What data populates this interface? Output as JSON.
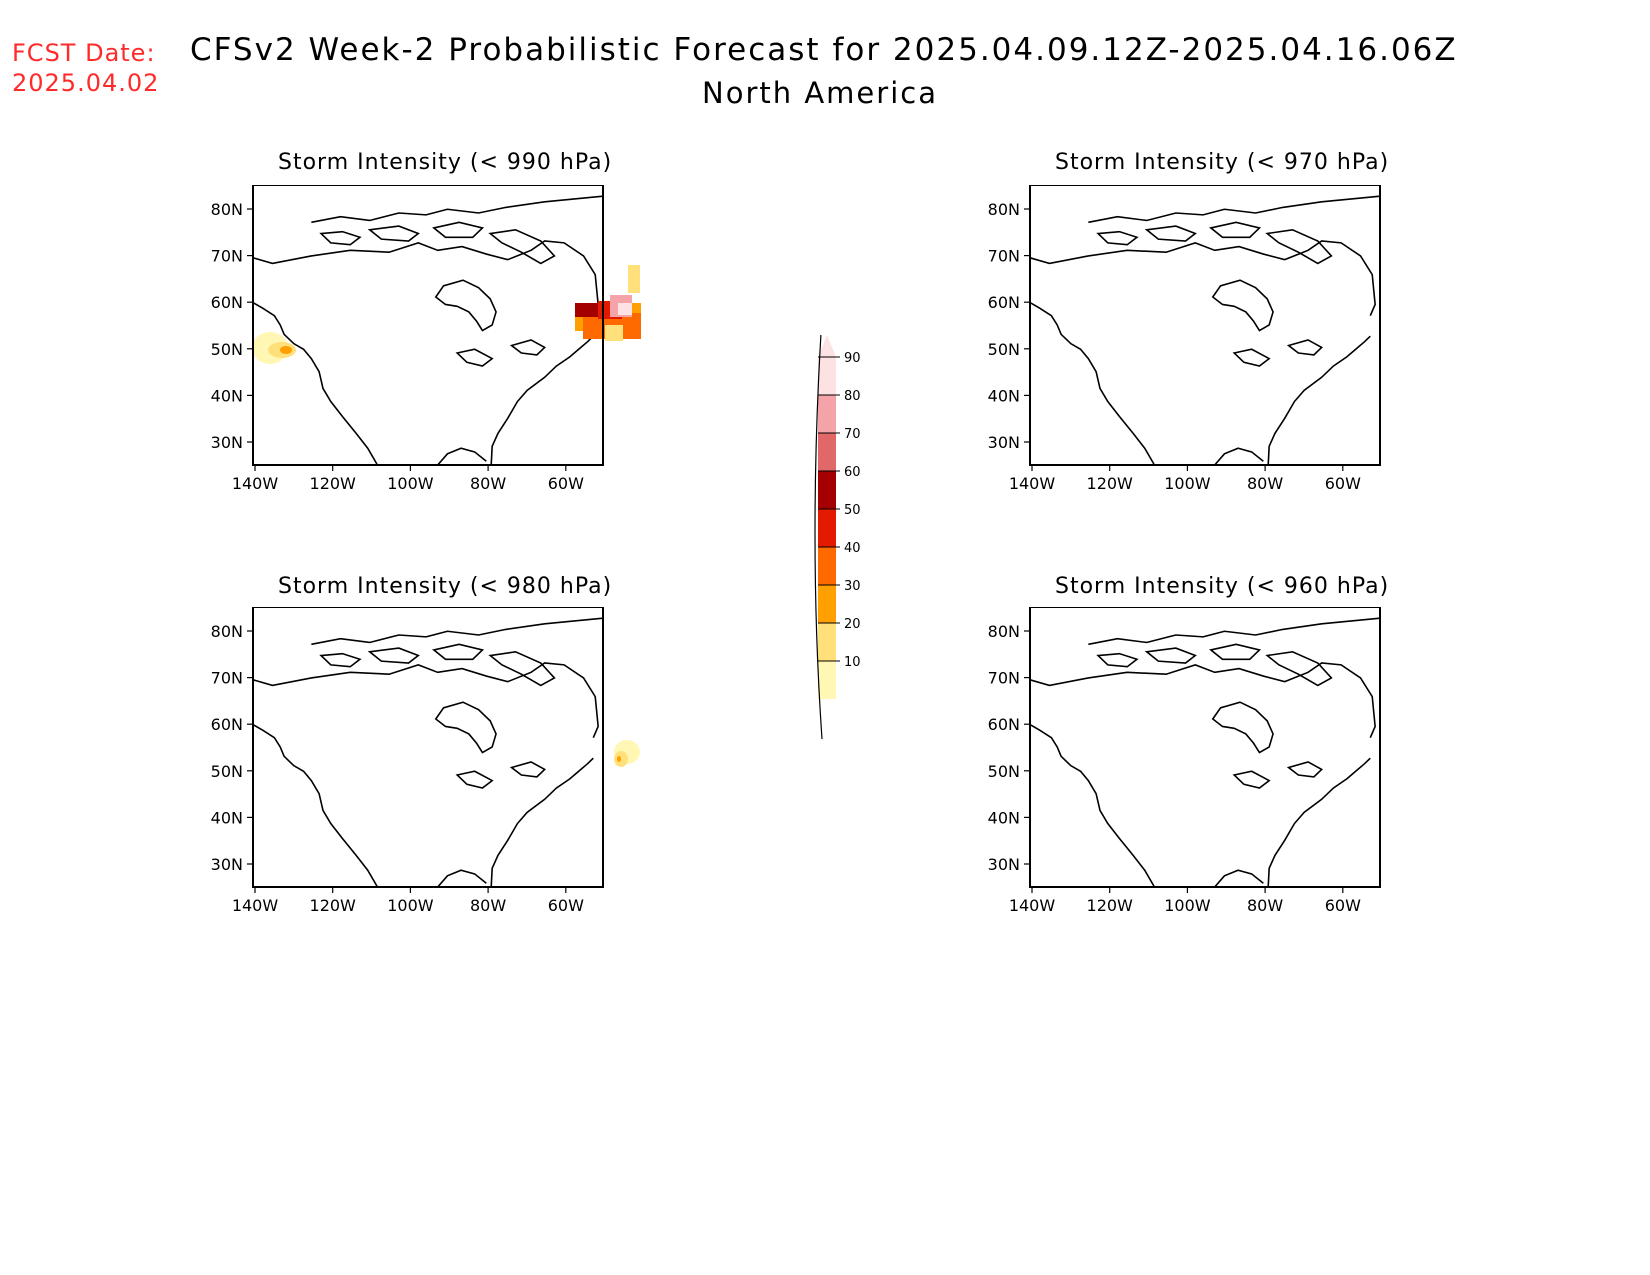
{
  "header": {
    "fcst_label": "FCST Date:",
    "fcst_date": "2025.04.02",
    "title": "CFSv2 Week-2 Probabilistic Forecast for 2025.04.09.12Z-2025.04.16.06Z",
    "subtitle": "North America"
  },
  "axes": {
    "lat_labels": [
      "80N",
      "70N",
      "60N",
      "50N",
      "40N",
      "30N"
    ],
    "lon_labels": [
      "140W",
      "120W",
      "100W",
      "80W",
      "60W"
    ]
  },
  "panels": [
    {
      "id": "p990",
      "title": "Storm Intensity (< 990 hPa)"
    },
    {
      "id": "p970",
      "title": "Storm Intensity (< 970 hPa)"
    },
    {
      "id": "p980",
      "title": "Storm Intensity (< 980 hPa)"
    },
    {
      "id": "p960",
      "title": "Storm Intensity (< 960 hPa)"
    }
  ],
  "colorbar": {
    "labels": [
      "90",
      "80",
      "70",
      "60",
      "50",
      "40",
      "30",
      "20",
      "10"
    ],
    "colors": [
      "#fde2e4",
      "#f4a3a8",
      "#e06868",
      "#a50000",
      "#e31a00",
      "#ff6a00",
      "#ff9f00",
      "#ffe07a",
      "#fff7b3"
    ]
  },
  "colors": {
    "fcst_date": "#ff2a2a"
  }
}
